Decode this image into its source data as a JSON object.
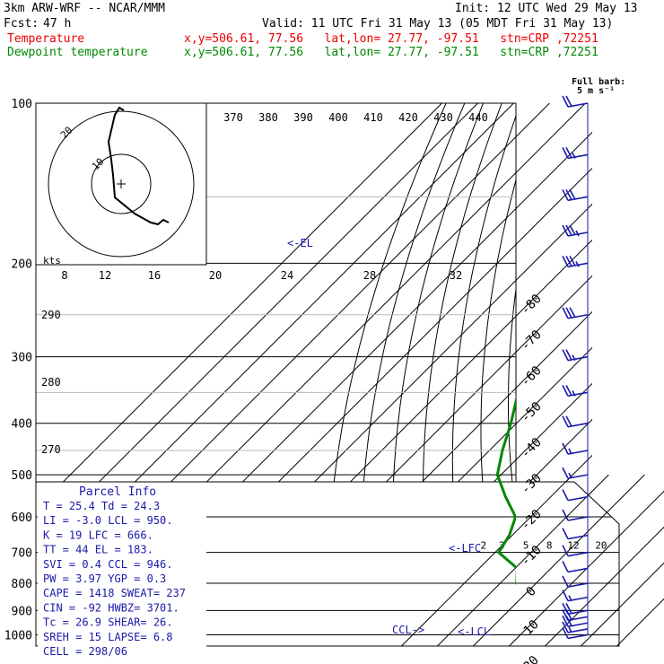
{
  "header": {
    "model": "3km ARW-WRF -- NCAR/MMM",
    "init": "Init: 12 UTC Wed 29 May 13",
    "fcst_label": "Fcst:",
    "fcst_value": "47 h",
    "valid": "Valid: 11 UTC Fri 31 May 13 (05 MDT Fri 31 May 13)",
    "temp_label": "Temperature",
    "dew_label": "Dewpoint temperature",
    "loc_info": "x,y=506.61, 77.56   lat,lon= 27.77, -97.51   stn=CRP ,72251"
  },
  "colors": {
    "temperature": "#ee0000",
    "dewpoint": "#008800",
    "barbs": "#1a1aaa",
    "mixing": "#000000"
  },
  "barb_legend": {
    "line1": "Full barb:",
    "line2": "5 m s⁻¹"
  },
  "parcel": {
    "title": "Parcel Info",
    "rows": [
      "T  =    25.4  Td =  24.3",
      "LI =    -3.0  LCL =  950.",
      "K  =      19  LFC =  666.",
      "TT =      44  EL  =  183.",
      "SVI =    0.4  CCL =  946.",
      "PW =    3.97  YGP =   0.3",
      "CAPE =  1418  SWEAT=  237",
      "CIN  =   -92  HWBZ= 3701.",
      "Tc =    26.9  SHEAR=  26.",
      "SREH =    15  LAPSE=  6.8",
      "CELL = 298/06"
    ]
  },
  "chart_data": {
    "type": "skew-t",
    "pressure_ticks": [
      100,
      200,
      300,
      400,
      500,
      600,
      700,
      800,
      900,
      1000
    ],
    "isotherm_labels": [
      -80,
      -70,
      -60,
      -50,
      -40,
      -30,
      -20,
      -10,
      0,
      10,
      20,
      30,
      40
    ],
    "theta_labels": [
      370,
      380,
      390,
      400,
      410,
      420,
      430,
      440
    ],
    "hodo_speed_labels": [
      "8",
      "12",
      "16",
      "20",
      "24",
      "28",
      "32"
    ],
    "hodo_unit": "kts",
    "dry_adiabat_labels": [
      290,
      280,
      270
    ],
    "mixing_ratio_labels": [
      "2",
      "3",
      "5",
      "8",
      "12",
      "20"
    ],
    "hodo_ring_labels": [
      "10",
      "20"
    ],
    "levels": {
      "el_label": "<-EL",
      "lfc_label": "<-LFC",
      "lcl_label": "<-LCL",
      "ccl_label": "CCL->"
    },
    "temperature_profile": [
      {
        "p": 1000,
        "t": 25.4
      },
      {
        "p": 975,
        "t": 23.8
      },
      {
        "p": 950,
        "t": 22.6
      },
      {
        "p": 925,
        "t": 21.8
      },
      {
        "p": 900,
        "t": 20.4
      },
      {
        "p": 850,
        "t": 18.4
      },
      {
        "p": 800,
        "t": 15.6
      },
      {
        "p": 750,
        "t": 12.4
      },
      {
        "p": 700,
        "t": 9.4
      },
      {
        "p": 650,
        "t": 6.2
      },
      {
        "p": 600,
        "t": 2.2
      },
      {
        "p": 550,
        "t": -1.8
      },
      {
        "p": 500,
        "t": -6.6
      },
      {
        "p": 450,
        "t": -11.8
      },
      {
        "p": 400,
        "t": -17.6
      },
      {
        "p": 350,
        "t": -24.4
      },
      {
        "p": 300,
        "t": -32.4
      },
      {
        "p": 250,
        "t": -42.6
      },
      {
        "p": 200,
        "t": -54.4
      },
      {
        "p": 175,
        "t": -61.2
      },
      {
        "p": 150,
        "t": -68.6
      },
      {
        "p": 125,
        "t": -70.8
      },
      {
        "p": 100,
        "t": -66.4
      }
    ],
    "dewpoint_profile": [
      {
        "p": 1000,
        "t": 24.3
      },
      {
        "p": 975,
        "t": 22.6
      },
      {
        "p": 950,
        "t": 21.4
      },
      {
        "p": 925,
        "t": 19.6
      },
      {
        "p": 900,
        "t": 17.2
      },
      {
        "p": 850,
        "t": 9.8
      },
      {
        "p": 800,
        "t": 4.6
      },
      {
        "p": 750,
        "t": 0.6
      },
      {
        "p": 700,
        "t": -9.0
      },
      {
        "p": 650,
        "t": -10.8
      },
      {
        "p": 600,
        "t": -14.2
      },
      {
        "p": 550,
        "t": -22.6
      },
      {
        "p": 500,
        "t": -31.0
      },
      {
        "p": 450,
        "t": -36.4
      },
      {
        "p": 400,
        "t": -41.6
      },
      {
        "p": 350,
        "t": -48.2
      },
      {
        "p": 300,
        "t": -54.6
      },
      {
        "p": 250,
        "t": -62.6
      },
      {
        "p": 200,
        "t": -70.4
      },
      {
        "p": 175,
        "t": -74.2
      },
      {
        "p": 150,
        "t": -77.4
      },
      {
        "p": 125,
        "t": -80.6
      },
      {
        "p": 100,
        "t": -84.0
      }
    ],
    "wind_barbs": [
      {
        "p": 1000,
        "kt": 10
      },
      {
        "p": 975,
        "kt": 15
      },
      {
        "p": 950,
        "kt": 20
      },
      {
        "p": 925,
        "kt": 20
      },
      {
        "p": 900,
        "kt": 20
      },
      {
        "p": 850,
        "kt": 15
      },
      {
        "p": 800,
        "kt": 10
      },
      {
        "p": 750,
        "kt": 10
      },
      {
        "p": 700,
        "kt": 10
      },
      {
        "p": 650,
        "kt": 10
      },
      {
        "p": 600,
        "kt": 10
      },
      {
        "p": 550,
        "kt": 10
      },
      {
        "p": 500,
        "kt": 15
      },
      {
        "p": 450,
        "kt": 15
      },
      {
        "p": 400,
        "kt": 20
      },
      {
        "p": 350,
        "kt": 25
      },
      {
        "p": 300,
        "kt": 25
      },
      {
        "p": 250,
        "kt": 30
      },
      {
        "p": 200,
        "kt": 35
      },
      {
        "p": 175,
        "kt": 35
      },
      {
        "p": 150,
        "kt": 30
      },
      {
        "p": 125,
        "kt": 25
      },
      {
        "p": 100,
        "kt": 20
      }
    ]
  }
}
